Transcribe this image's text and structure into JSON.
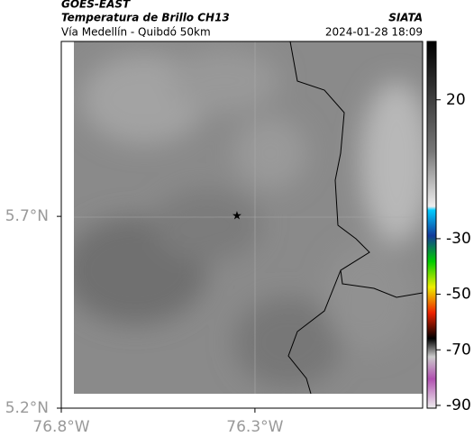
{
  "header": {
    "agency": "GOES-EAST",
    "product": "Temperatura de Brillo CH13",
    "location": "Vía Medellín - Quibdó 50km",
    "source": "SIATA",
    "datetime": "2024-01-28 18:09"
  },
  "map": {
    "lonlim": [
      -76.8,
      -75.867
    ],
    "latlim": [
      5.2,
      6.156
    ],
    "lon_ticks": [
      {
        "value": -76.8,
        "label": "76.8°W"
      },
      {
        "value": -76.3,
        "label": "76.3°W"
      }
    ],
    "lat_ticks": [
      {
        "value": 5.7,
        "label": "5.7°N"
      },
      {
        "value": 5.2,
        "label": "5.2°N"
      }
    ],
    "colorbar": {
      "lim": [
        -91,
        41
      ],
      "ticks": [
        20,
        -30,
        -50,
        -70,
        -90
      ]
    }
  }
}
